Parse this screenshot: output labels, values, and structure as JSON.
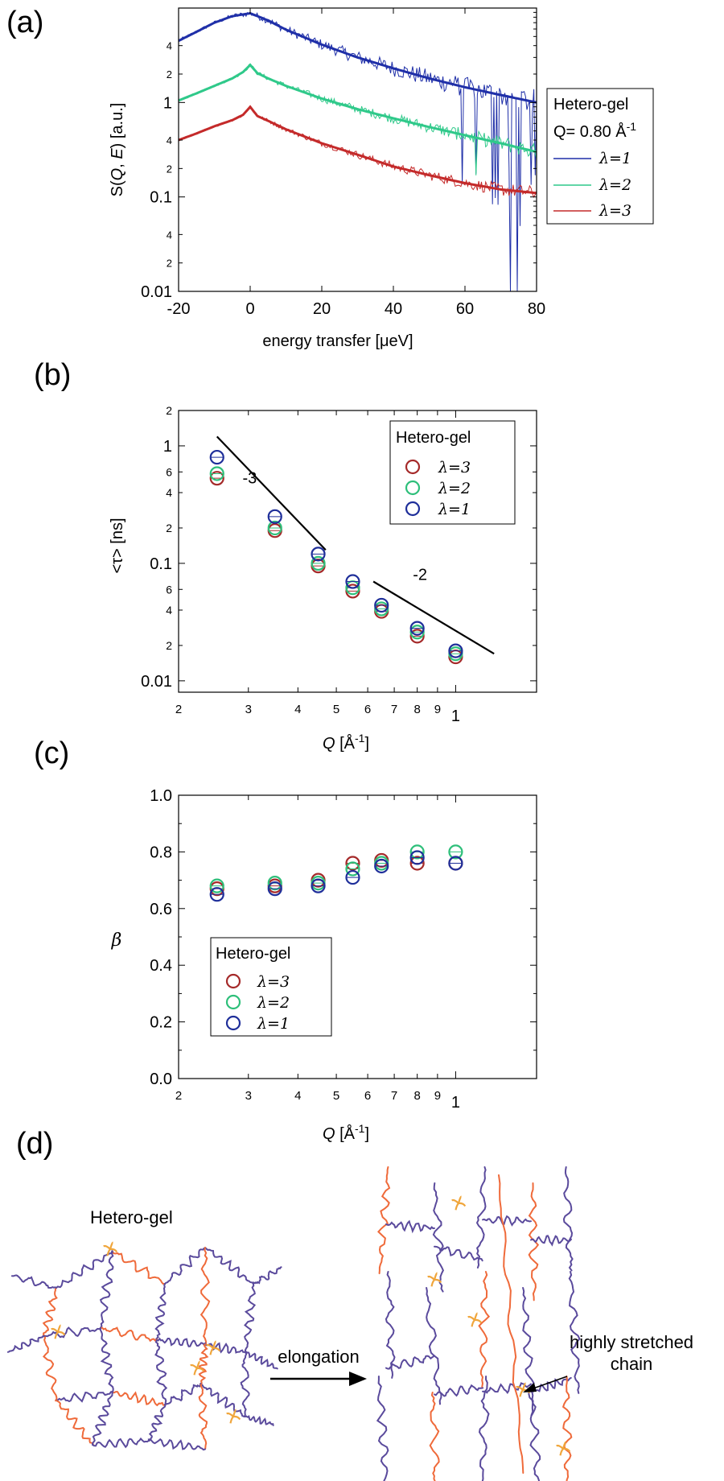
{
  "colors": {
    "blue": "#1f2fa8",
    "green": "#2fc98a",
    "red": "#c42a2a",
    "chain_purple": "#5a4a9c",
    "chain_orange": "#ef6a3a",
    "crosslink": "#f0a63c",
    "marker_red": "#a52a2a",
    "marker_green": "#2ebf7a",
    "marker_blue": "#1f2f9a"
  },
  "panels": {
    "a": {
      "label": "(a)"
    },
    "b": {
      "label": "(b)"
    },
    "c": {
      "label": "(c)"
    },
    "d": {
      "label": "(d)"
    }
  },
  "chart_data": [
    {
      "id": "a",
      "type": "line",
      "xlabel": "energy transfer [μeV]",
      "ylabel_parts": [
        "S(",
        "Q",
        ", ",
        "E",
        ") [a.u.]"
      ],
      "xlim": [
        -20,
        80
      ],
      "ylim": [
        0.01,
        10
      ],
      "yscale": "log",
      "xticks": [
        -20,
        0,
        20,
        40,
        60,
        80
      ],
      "yticks_major": [
        {
          "v": 0.01,
          "t": "0.01"
        },
        {
          "v": 0.1,
          "t": "0.1"
        },
        {
          "v": 1,
          "t": "1"
        }
      ],
      "yticks_minor": [
        {
          "v": 0.02,
          "t": "2"
        },
        {
          "v": 0.04,
          "t": "4"
        },
        {
          "v": 0.2,
          "t": "2"
        },
        {
          "v": 0.4,
          "t": "4"
        },
        {
          "v": 2,
          "t": "2"
        },
        {
          "v": 4,
          "t": "4"
        }
      ],
      "legend": {
        "title": "Hetero-gel",
        "q_text": "Q= 0.80 Å",
        "q_sup": "-1",
        "entries": [
          "λ=1",
          "λ=2",
          "λ=3"
        ]
      },
      "series": [
        {
          "name": "λ=1",
          "color_key": "blue",
          "x": [
            -20,
            -15,
            -10,
            -5,
            0,
            5,
            10,
            20,
            30,
            40,
            50,
            60,
            70,
            80
          ],
          "y": [
            4.5,
            5.6,
            7.0,
            8.2,
            8.8,
            7.4,
            5.9,
            4.1,
            3.0,
            2.3,
            1.8,
            1.45,
            1.2,
            1.0
          ]
        },
        {
          "name": "λ=2",
          "color_key": "green",
          "x": [
            -20,
            -15,
            -10,
            -5,
            -2,
            0,
            2,
            5,
            10,
            20,
            30,
            40,
            50,
            60,
            70,
            80
          ],
          "y": [
            1.05,
            1.25,
            1.5,
            1.8,
            2.1,
            2.5,
            2.05,
            1.8,
            1.5,
            1.1,
            0.85,
            0.68,
            0.55,
            0.45,
            0.37,
            0.3
          ]
        },
        {
          "name": "λ=3",
          "color_key": "red",
          "x": [
            -20,
            -15,
            -10,
            -5,
            -2,
            0,
            2,
            5,
            10,
            20,
            30,
            40,
            50,
            60,
            70,
            80
          ],
          "y": [
            0.4,
            0.47,
            0.56,
            0.65,
            0.74,
            0.9,
            0.72,
            0.64,
            0.52,
            0.37,
            0.28,
            0.21,
            0.17,
            0.14,
            0.12,
            0.11
          ]
        }
      ]
    },
    {
      "id": "b",
      "type": "scatter",
      "xlabel_parts": [
        "Q",
        " [Å",
        "-1",
        "]"
      ],
      "ylabel": "<τ> [ns]",
      "xscale": "log",
      "yscale": "log",
      "xlim": [
        0.2,
        1.6
      ],
      "ylim": [
        0.008,
        2
      ],
      "xticks": [
        {
          "v": 0.2,
          "t": "2"
        },
        {
          "v": 0.3,
          "t": "3"
        },
        {
          "v": 0.4,
          "t": "4"
        },
        {
          "v": 0.5,
          "t": "5"
        },
        {
          "v": 0.6,
          "t": "6"
        },
        {
          "v": 0.7,
          "t": "7"
        },
        {
          "v": 0.8,
          "t": "8"
        },
        {
          "v": 0.9,
          "t": "9"
        },
        {
          "v": 1.0,
          "t": "1"
        }
      ],
      "yticks": [
        {
          "v": 0.01,
          "t": "0.01"
        },
        {
          "v": 0.02,
          "t": "2"
        },
        {
          "v": 0.04,
          "t": "4"
        },
        {
          "v": 0.06,
          "t": "6"
        },
        {
          "v": 0.1,
          "t": "0.1"
        },
        {
          "v": 0.2,
          "t": "2"
        },
        {
          "v": 0.4,
          "t": "4"
        },
        {
          "v": 0.6,
          "t": "6"
        },
        {
          "v": 1,
          "t": "1"
        },
        {
          "v": 2,
          "t": "2"
        }
      ],
      "legend": {
        "title": "Hetero-gel",
        "entries": [
          "λ=3",
          "λ=2",
          "λ=1"
        ]
      },
      "x": [
        0.25,
        0.35,
        0.45,
        0.55,
        0.65,
        0.8,
        1.0
      ],
      "series": [
        {
          "name": "λ=3",
          "color_key": "marker_red",
          "values": [
            0.53,
            0.19,
            0.095,
            0.058,
            0.039,
            0.024,
            0.016
          ]
        },
        {
          "name": "λ=2",
          "color_key": "marker_green",
          "values": [
            0.58,
            0.2,
            0.1,
            0.062,
            0.041,
            0.026,
            0.017
          ]
        },
        {
          "name": "λ=1",
          "color_key": "marker_blue",
          "values": [
            0.8,
            0.25,
            0.12,
            0.07,
            0.044,
            0.028,
            0.018
          ]
        }
      ],
      "guides": [
        {
          "label": "-3",
          "x": [
            0.25,
            0.47
          ],
          "y": [
            1.2,
            0.13
          ]
        },
        {
          "label": "-2",
          "x": [
            0.62,
            1.25
          ],
          "y": [
            0.07,
            0.017
          ]
        }
      ]
    },
    {
      "id": "c",
      "type": "scatter",
      "xlabel_parts": [
        "Q",
        " [Å",
        "-1",
        "]"
      ],
      "ylabel": "β",
      "xscale": "log",
      "xlim": [
        0.2,
        1.6
      ],
      "ylim": [
        0.0,
        1.0
      ],
      "xticks": [
        {
          "v": 0.2,
          "t": "2"
        },
        {
          "v": 0.3,
          "t": "3"
        },
        {
          "v": 0.4,
          "t": "4"
        },
        {
          "v": 0.5,
          "t": "5"
        },
        {
          "v": 0.6,
          "t": "6"
        },
        {
          "v": 0.7,
          "t": "7"
        },
        {
          "v": 0.8,
          "t": "8"
        },
        {
          "v": 0.9,
          "t": "9"
        },
        {
          "v": 1.0,
          "t": "1"
        }
      ],
      "yticks": [
        {
          "v": 0.0,
          "t": "0.0"
        },
        {
          "v": 0.2,
          "t": "0.2"
        },
        {
          "v": 0.4,
          "t": "0.4"
        },
        {
          "v": 0.6,
          "t": "0.6"
        },
        {
          "v": 0.8,
          "t": "0.8"
        },
        {
          "v": 1.0,
          "t": "1.0"
        }
      ],
      "legend": {
        "title": "Hetero-gel",
        "entries": [
          "λ=3",
          "λ=2",
          "λ=1"
        ]
      },
      "x": [
        0.25,
        0.35,
        0.45,
        0.55,
        0.65,
        0.8,
        1.0
      ],
      "series": [
        {
          "name": "λ=3",
          "color_key": "marker_red",
          "values": [
            0.67,
            0.68,
            0.7,
            0.76,
            0.77,
            0.76,
            0.76
          ]
        },
        {
          "name": "λ=2",
          "color_key": "marker_green",
          "values": [
            0.68,
            0.69,
            0.69,
            0.74,
            0.76,
            0.8,
            0.8
          ]
        },
        {
          "name": "λ=1",
          "color_key": "marker_blue",
          "values": [
            0.65,
            0.67,
            0.68,
            0.71,
            0.75,
            0.78,
            0.76
          ]
        }
      ]
    }
  ],
  "diagram": {
    "title": "Hetero-gel",
    "arrow_label": "elongation",
    "annotation": "highly stretched chain",
    "annotation_lines": [
      "highly stretched",
      "chain"
    ]
  }
}
